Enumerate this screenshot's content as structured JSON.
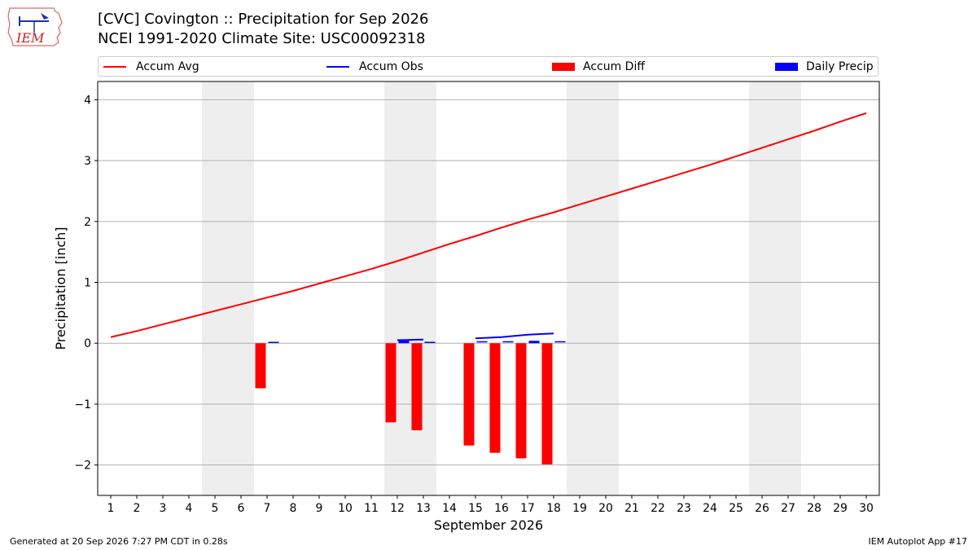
{
  "logo": {
    "text": "IEM",
    "icon": "iem-iowa-logo-icon"
  },
  "title": {
    "line1": "[CVC] Covington :: Precipitation for Sep 2026",
    "line2": "NCEI 1991-2020 Climate Site: USC00092318"
  },
  "legend": {
    "placement": "top",
    "items": [
      {
        "label": "Accum Avg",
        "color": "#ff0000",
        "kind": "line"
      },
      {
        "label": "Accum Obs",
        "color": "#0000ff",
        "kind": "line"
      },
      {
        "label": "Accum Diff",
        "color": "#ff0000",
        "kind": "bar"
      },
      {
        "label": "Daily Precip",
        "color": "#0000ff",
        "kind": "bar"
      }
    ]
  },
  "footer": {
    "left": "Generated at 20 Sep 2026 7:27 PM CDT in 0.28s",
    "right": "IEM Autoplot App #17"
  },
  "chart_data": {
    "type": "bar",
    "xlabel": "September 2026",
    "ylabel": "Precipitation [inch]",
    "xlim": [
      1,
      30
    ],
    "ylim": [
      -2.5,
      4.3
    ],
    "yticks": [
      -2,
      -1,
      0,
      1,
      2,
      3,
      4
    ],
    "ytick_labels": [
      "−2",
      "−1",
      "0",
      "1",
      "2",
      "3",
      "4"
    ],
    "x": [
      1,
      2,
      3,
      4,
      5,
      6,
      7,
      8,
      9,
      10,
      11,
      12,
      13,
      14,
      15,
      16,
      17,
      18,
      19,
      20,
      21,
      22,
      23,
      24,
      25,
      26,
      27,
      28,
      29,
      30
    ],
    "weekend_days": [
      5,
      6,
      12,
      13,
      19,
      20,
      26,
      27
    ],
    "grid": "horizontal",
    "series": [
      {
        "name": "Accum Avg",
        "type": "line",
        "color": "#ff0000",
        "x": [
          1,
          2,
          3,
          4,
          5,
          6,
          7,
          8,
          9,
          10,
          11,
          12,
          13,
          14,
          15,
          16,
          17,
          18,
          19,
          20,
          21,
          22,
          23,
          24,
          25,
          26,
          27,
          28,
          29,
          30
        ],
        "values": [
          0.1,
          0.2,
          0.31,
          0.42,
          0.53,
          0.64,
          0.75,
          0.86,
          0.98,
          1.1,
          1.22,
          1.35,
          1.49,
          1.63,
          1.76,
          1.9,
          2.03,
          2.15,
          2.28,
          2.41,
          2.54,
          2.67,
          2.8,
          2.93,
          3.07,
          3.21,
          3.35,
          3.49,
          3.64,
          3.78
        ]
      },
      {
        "name": "Accum Obs",
        "type": "line",
        "color": "#0000ff",
        "segments": [
          {
            "x": [
              12,
              13
            ],
            "values": [
              0.05,
              0.06
            ]
          },
          {
            "x": [
              15,
              16,
              17,
              18
            ],
            "values": [
              0.08,
              0.1,
              0.14,
              0.16
            ]
          }
        ]
      },
      {
        "name": "Accum Diff",
        "type": "bar",
        "color": "#ff0000",
        "x": [
          7,
          12,
          13,
          15,
          16,
          17,
          18
        ],
        "values": [
          -0.74,
          -1.3,
          -1.43,
          -1.68,
          -1.8,
          -1.89,
          -1.99
        ]
      },
      {
        "name": "Daily Precip",
        "type": "bar",
        "color": "#0000ff",
        "x": [
          7,
          12,
          13,
          15,
          16,
          17,
          18
        ],
        "values": [
          0.01,
          0.04,
          0.01,
          0.02,
          0.02,
          0.04,
          0.02
        ]
      }
    ]
  }
}
